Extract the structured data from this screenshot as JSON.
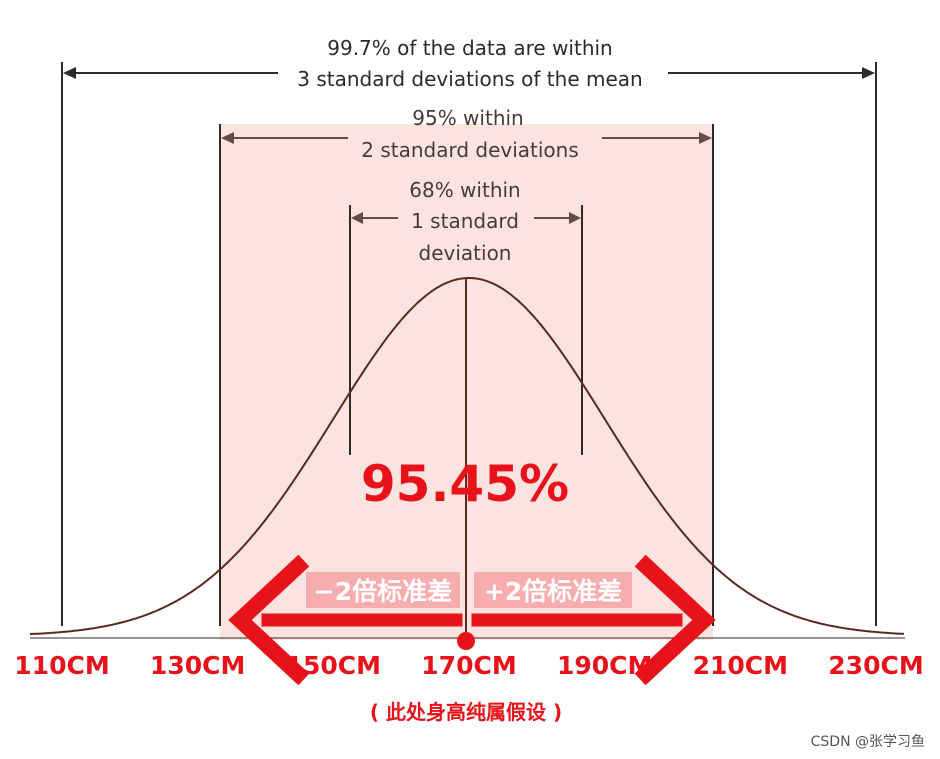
{
  "annotations": {
    "sd3_line1": "99.7% of the data are within",
    "sd3_line2": "3 standard deviations of the mean",
    "sd2_line1": "95% within",
    "sd2_line2": "2 standard deviations",
    "sd1_line1": "68% within",
    "sd1_line2": "1 standard",
    "sd1_line3": "deviation"
  },
  "big_percent": "95.45%",
  "minus_label": "−2倍标准差",
  "plus_label": "+2倍标准差",
  "footnote": "( 此处身高纯属假设 )",
  "watermark": "CSDN @张学习鱼",
  "colors": {
    "shade": "#fbe3df",
    "accent": "#e8121b",
    "curve": "#5a2a20",
    "line_dark": "#2e2a28",
    "line_brown": "#6b4a44"
  },
  "chart_data": {
    "type": "area",
    "mean": 170,
    "sd": 20,
    "x_ticks": [
      110,
      130,
      150,
      170,
      190,
      210,
      230
    ],
    "x_tick_labels": [
      "110CM",
      "130CM",
      "150CM",
      "170CM",
      "190CM",
      "210CM",
      "230CM"
    ],
    "shaded_range": [
      130,
      210
    ],
    "xlim": [
      110,
      230
    ]
  }
}
